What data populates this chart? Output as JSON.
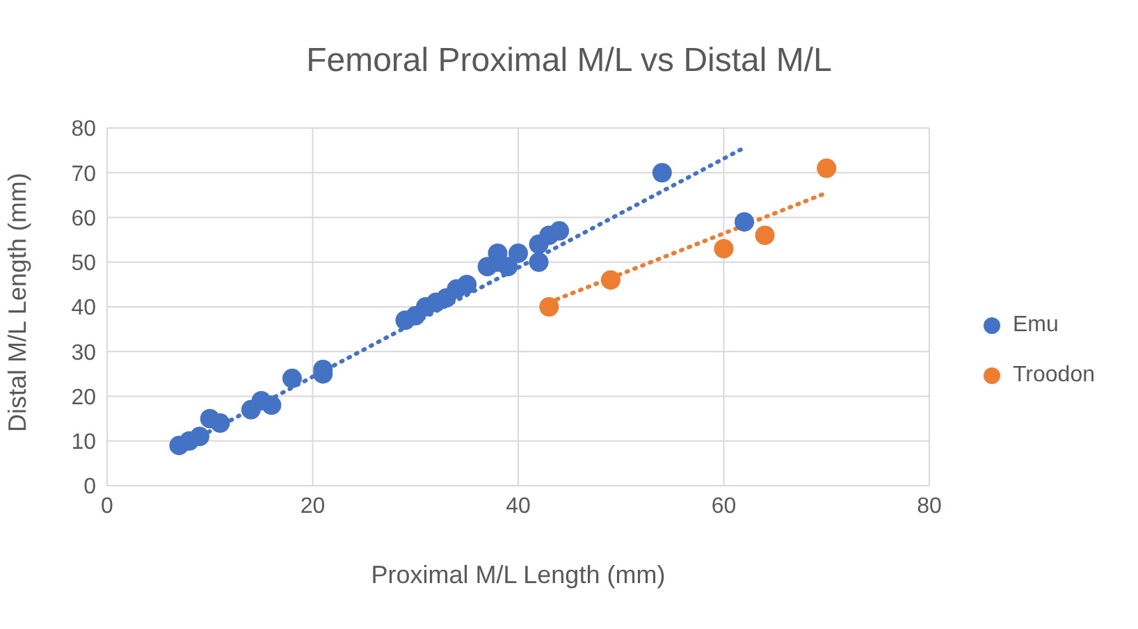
{
  "chart_data": {
    "type": "scatter",
    "title": "Femoral Proximal M/L vs Distal M/L",
    "xlabel": "Proximal M/L Length (mm)",
    "ylabel": "Distal M/L Length (mm)",
    "xlim": [
      0,
      80
    ],
    "xticks": [
      0,
      20,
      40,
      60,
      80
    ],
    "ylim": [
      0,
      80
    ],
    "yticks": [
      0,
      10,
      20,
      30,
      40,
      50,
      60,
      70,
      80
    ],
    "grid": true,
    "legend": "right",
    "marker": "circle",
    "series": [
      {
        "name": "Emu",
        "color": "#4472c4",
        "x": [
          7,
          8,
          9,
          10,
          11,
          14,
          15,
          16,
          18,
          21,
          21,
          29,
          30,
          31,
          32,
          33,
          34,
          35,
          37,
          38,
          38,
          39,
          40,
          42,
          42,
          43,
          44,
          54,
          62
        ],
        "values": [
          9,
          10,
          11,
          15,
          14,
          17,
          19,
          18,
          24,
          25,
          26,
          37,
          38,
          40,
          41,
          42,
          44,
          45,
          49,
          52,
          50,
          49,
          52,
          54,
          50,
          56,
          57,
          70,
          59
        ]
      },
      {
        "name": "Troodon",
        "color": "#ed7d31",
        "x": [
          43,
          49,
          60,
          64,
          70
        ],
        "values": [
          40,
          46,
          53,
          56,
          71
        ]
      },
      {
        "type": "line",
        "color": "#4472c4",
        "line_style": "dotted",
        "marker": "none",
        "x": [
          7,
          62
        ],
        "values": [
          8.5,
          75.6
        ]
      },
      {
        "type": "line",
        "color": "#ed7d31",
        "line_style": "dotted",
        "marker": "none",
        "x": [
          43,
          70
        ],
        "values": [
          41,
          65.5
        ]
      }
    ]
  }
}
